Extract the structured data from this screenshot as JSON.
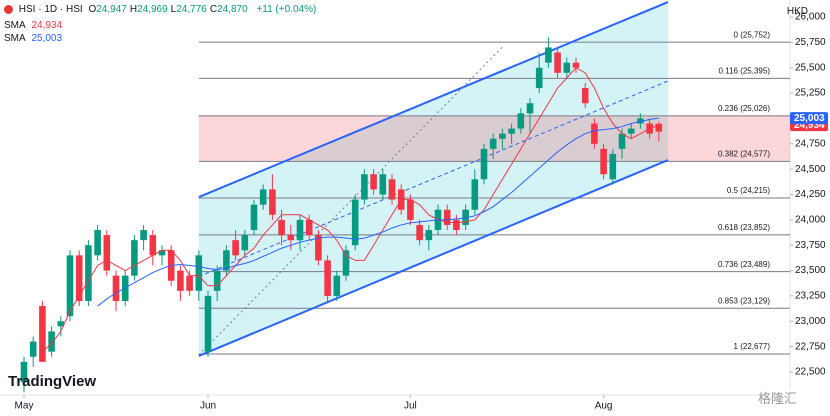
{
  "header": {
    "symbol": "HSI · 1D · HSI",
    "fields": [
      {
        "key": "O",
        "label": "24,947"
      },
      {
        "key": "H",
        "label": "24,969"
      },
      {
        "key": "L",
        "label": "24,776"
      },
      {
        "key": "C",
        "label": "24,870"
      }
    ],
    "change": "+11 (+0.04%)",
    "currency": "HKD",
    "watermark": "TradingView",
    "brand": "格隆汇"
  },
  "chart_data": {
    "type": "candlestick",
    "categories": [
      "May",
      null,
      null,
      null,
      null,
      null,
      null,
      null,
      null,
      null,
      null,
      null,
      null,
      null,
      null,
      null,
      null,
      null,
      null,
      null,
      "Jun",
      null,
      null,
      null,
      null,
      null,
      null,
      null,
      null,
      null,
      null,
      null,
      null,
      null,
      null,
      null,
      null,
      null,
      null,
      null,
      null,
      null,
      "Jul",
      null,
      null,
      null,
      null,
      null,
      null,
      null,
      null,
      null,
      null,
      null,
      null,
      null,
      null,
      null,
      null,
      null,
      null,
      null,
      null,
      "Aug",
      null,
      null,
      null,
      null,
      null,
      null
    ],
    "open": [
      22400,
      22650,
      23150,
      22700,
      22950,
      23050,
      23650,
      23200,
      23650,
      23850,
      23450,
      23200,
      23450,
      23800,
      23850,
      23650,
      23700,
      23500,
      23450,
      23300,
      22700,
      23300,
      23500,
      23800,
      23700,
      23900,
      24150,
      24300,
      24000,
      23850,
      23800,
      24000,
      23850,
      23600,
      23250,
      23450,
      23750,
      24200,
      24450,
      24250,
      24400,
      24300,
      24200,
      23950,
      23800,
      23900,
      24100,
      24000,
      23950,
      24100,
      24400,
      24700,
      24800,
      24850,
      24900,
      25050,
      25300,
      25550,
      25650,
      25450,
      25550,
      25300,
      24950,
      24700,
      24400,
      24700,
      24850,
      24950,
      24950,
      24947
    ],
    "high": [
      22650,
      22850,
      23200,
      22950,
      23050,
      23700,
      23700,
      23800,
      23950,
      23900,
      23500,
      23500,
      23850,
      23950,
      23900,
      23750,
      23750,
      23550,
      23500,
      23700,
      23300,
      23550,
      23750,
      23900,
      23900,
      24200,
      24350,
      24450,
      24100,
      23950,
      24050,
      24050,
      23900,
      23650,
      23500,
      23750,
      24250,
      24500,
      24500,
      24500,
      24450,
      24350,
      24250,
      24000,
      23950,
      24150,
      24150,
      24050,
      24150,
      24500,
      24750,
      24850,
      24900,
      24950,
      25100,
      25200,
      25650,
      25800,
      25700,
      25600,
      25600,
      25350,
      25000,
      24750,
      24700,
      24900,
      24950,
      25050,
      25000,
      24969
    ],
    "low": [
      22300,
      22550,
      22600,
      22650,
      22850,
      23000,
      23150,
      23150,
      23600,
      23450,
      23100,
      23150,
      23400,
      23700,
      23550,
      23550,
      23350,
      23200,
      23250,
      23200,
      22650,
      23200,
      23450,
      23600,
      23650,
      23850,
      24100,
      24000,
      23750,
      23700,
      23700,
      23800,
      23550,
      23200,
      23200,
      23400,
      23700,
      24150,
      24250,
      24200,
      24150,
      24050,
      23950,
      23750,
      23700,
      23850,
      23900,
      23850,
      23900,
      24050,
      24350,
      24600,
      24700,
      24750,
      24850,
      24850,
      25250,
      25500,
      25400,
      25400,
      25450,
      25100,
      24700,
      24400,
      24350,
      24600,
      24800,
      24900,
      24800,
      24776
    ],
    "close": [
      22600,
      22800,
      22600,
      22900,
      23000,
      23650,
      23200,
      23750,
      23900,
      23500,
      23200,
      23450,
      23800,
      23900,
      23650,
      23700,
      23400,
      23300,
      23300,
      23650,
      23250,
      23500,
      23700,
      23650,
      23850,
      24150,
      24300,
      24050,
      23850,
      23800,
      24000,
      23850,
      23600,
      23250,
      23450,
      23700,
      24200,
      24450,
      24300,
      24450,
      24200,
      24100,
      24000,
      23800,
      23900,
      24100,
      23950,
      23900,
      24100,
      24400,
      24700,
      24800,
      24850,
      24900,
      25050,
      25150,
      25500,
      25700,
      25450,
      25550,
      25500,
      25150,
      24750,
      24450,
      24650,
      24850,
      24900,
      25000,
      24850,
      24870
    ],
    "up_color": "#089981",
    "down_color": "#f23645",
    "series": [
      {
        "name": "SMA",
        "color": "#f23645",
        "last_value": {
          "value": 24934,
          "label": "24,934"
        },
        "values": [
          null,
          null,
          22700,
          22780,
          22900,
          23100,
          23250,
          23400,
          23550,
          23600,
          23550,
          23500,
          23550,
          23600,
          23650,
          23700,
          23700,
          23600,
          23450,
          23450,
          23350,
          23350,
          23450,
          23550,
          23650,
          23720,
          23850,
          23950,
          24050,
          24050,
          24050,
          24000,
          23950,
          23900,
          23800,
          23650,
          23600,
          23600,
          23750,
          23900,
          24050,
          24200,
          24200,
          24150,
          24050,
          24000,
          23980,
          23970,
          23980,
          24000,
          24100,
          24250,
          24400,
          24550,
          24700,
          24850,
          25000,
          25150,
          25300,
          25400,
          25500,
          25450,
          25300,
          25100,
          24950,
          24850,
          24800,
          24850,
          24900,
          24934
        ]
      },
      {
        "name": "SMA",
        "color": "#2962ff",
        "last_value": {
          "value": 25003,
          "label": "25,003"
        },
        "values": [
          null,
          null,
          null,
          null,
          null,
          null,
          null,
          null,
          23150,
          23220,
          23280,
          23330,
          23380,
          23430,
          23480,
          23520,
          23550,
          23560,
          23550,
          23540,
          23520,
          23510,
          23520,
          23550,
          23570,
          23600,
          23640,
          23680,
          23720,
          23750,
          23780,
          23800,
          23820,
          23830,
          23830,
          23820,
          23810,
          23820,
          23850,
          23880,
          23920,
          23950,
          23970,
          23980,
          23990,
          24000,
          24000,
          24010,
          24020,
          24040,
          24080,
          24130,
          24200,
          24270,
          24350,
          24430,
          24510,
          24590,
          24670,
          24740,
          24800,
          24850,
          24880,
          24890,
          24900,
          24920,
          24950,
          24970,
          24990,
          25003
        ]
      }
    ],
    "ylim": [
      22273,
      26168
    ],
    "yticks": [
      {
        "value": 22500,
        "label": "22,500"
      },
      {
        "value": 22750,
        "label": "22,750"
      },
      {
        "value": 23000,
        "label": "23,000"
      },
      {
        "value": 23250,
        "label": "23,250"
      },
      {
        "value": 23500,
        "label": "23,500"
      },
      {
        "value": 23750,
        "label": "23,750"
      },
      {
        "value": 24000,
        "label": "24,000"
      },
      {
        "value": 24250,
        "label": "24,250"
      },
      {
        "value": 24500,
        "label": "24,500"
      },
      {
        "value": 24750,
        "label": "24,750"
      },
      {
        "value": 25000,
        "label": "25,000"
      },
      {
        "value": 25250,
        "label": "25,250"
      },
      {
        "value": 25500,
        "label": "25,500"
      },
      {
        "value": 25750,
        "label": "25,750"
      },
      {
        "value": 26000,
        "label": "26,000"
      }
    ],
    "fib_levels": [
      {
        "value": 25752,
        "label": "0 (25,752)"
      },
      {
        "value": 25395,
        "label": "0.116 (25,395)"
      },
      {
        "value": 25026,
        "label": "0.236 (25,026)"
      },
      {
        "value": 24577,
        "label": "0.382 (24,577)"
      },
      {
        "value": 24215,
        "label": "0.5 (24,215)"
      },
      {
        "value": 23852,
        "label": "0.618 (23,852)"
      },
      {
        "value": 23489,
        "label": "0.736 (23,489)"
      },
      {
        "value": 23129,
        "label": "0.853 (23,129)"
      },
      {
        "value": 22677,
        "label": "1 (22,677)"
      }
    ],
    "fib_zone": [
      2,
      3
    ],
    "channel": {
      "x": [
        19,
        70
      ],
      "upper": [
        24225,
        26148
      ],
      "middle": [
        23441,
        25369
      ],
      "lower": [
        22658,
        24590
      ],
      "color": "#2962ff",
      "fill": "#d4f3f6"
    },
    "trend_line": {
      "x": [
        19,
        52
      ],
      "y": [
        22668,
        25704
      ],
      "color": "#787b86"
    }
  }
}
